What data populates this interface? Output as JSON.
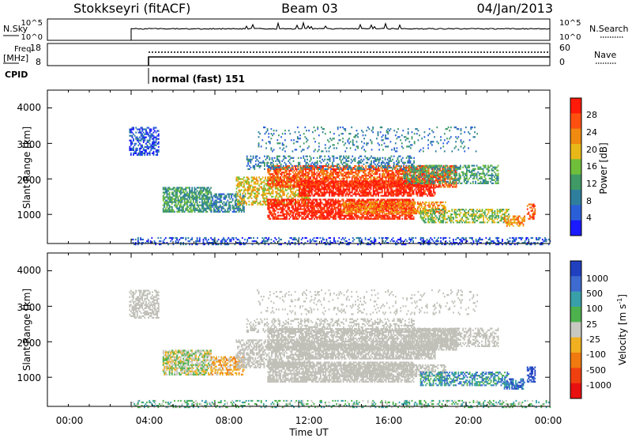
{
  "header": {
    "site": "Stokkseyri (fitACF)",
    "beam": "Beam 03",
    "date": "04/Jan/2013"
  },
  "noise_panel": {
    "left_label": "N.Sky",
    "right_label": "N.Search",
    "left_ticks": [
      "10^5",
      "10^0"
    ],
    "right_ticks": [
      "10^5",
      "10^0"
    ]
  },
  "freq_panel": {
    "left_label_1": "Freq.",
    "left_label_2": "[MHz]",
    "right_label": "Nave",
    "left_ticks": [
      "18",
      "8"
    ],
    "right_ticks": [
      "60",
      "0"
    ]
  },
  "cpid_panel": {
    "label": "CPID",
    "program": "normal (fast) 151"
  },
  "chart_data": [
    {
      "type": "heatmap",
      "name": "power",
      "ylabel": "Slant Range [km]",
      "y_ticks": [
        "1000",
        "2000",
        "3000",
        "4000"
      ],
      "ylim": [
        180,
        4500
      ],
      "xlim": [
        0,
        24
      ],
      "colorbar": {
        "label": "Power [dB]",
        "ticks": [
          "4",
          "8",
          "12",
          "16",
          "20",
          "24",
          "28"
        ],
        "range": [
          0,
          30
        ],
        "colors": [
          "#1a1aff",
          "#2b5fd8",
          "#2e7f9e",
          "#3f9a66",
          "#6fbf3a",
          "#e8b818",
          "#f08a10",
          "#ff5010",
          "#ff1a0a"
        ]
      }
    },
    {
      "type": "heatmap",
      "name": "velocity",
      "ylabel": "Slant Range [km]",
      "y_ticks": [
        "1000",
        "2000",
        "3000",
        "4000"
      ],
      "ylim": [
        180,
        4500
      ],
      "xlim": [
        0,
        24
      ],
      "colorbar": {
        "label": "Velocity [m s",
        "label_sup": "-1",
        "label_close": "]",
        "ticks": [
          "1000",
          "500",
          "100",
          "25",
          "-25",
          "-100",
          "-500",
          "-1000"
        ],
        "colors": [
          "#2040c0",
          "#3d6bd0",
          "#38a0a8",
          "#4db24d",
          "#c8c8c0",
          "#f0b020",
          "#f07a10",
          "#f04010",
          "#e81010"
        ]
      }
    }
  ],
  "x_axis": {
    "label": "Time UT",
    "ticks": [
      "00:00",
      "04:00",
      "08:00",
      "12:00",
      "16:00",
      "20:00",
      "00:00"
    ]
  },
  "colors": {
    "ground_scatter": "#c0c0b8"
  }
}
